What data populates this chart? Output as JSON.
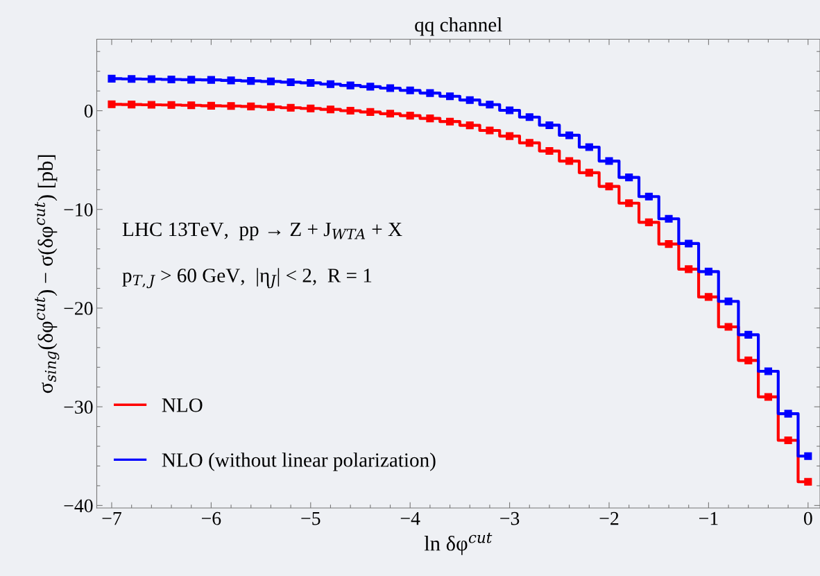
{
  "chart_data": {
    "type": "step",
    "title": "qq channel",
    "xlabel": "ln δφ$^{cut}$",
    "ylabel": "σ$_{sing}$(δφ$^{cut}$) − σ(δφ$^{cut}$) [pb]",
    "annotations": [
      "LHC 13TeV,  pp → Z + J$_{WTA}$ + X",
      "p$_{T,J}$ > 60 GeV,  |η$_{J}$| < 2,  R = 1"
    ],
    "x": [
      -7.0,
      -6.8,
      -6.6,
      -6.4,
      -6.2,
      -6.0,
      -5.8,
      -5.6,
      -5.4,
      -5.2,
      -5.0,
      -4.8,
      -4.6,
      -4.4,
      -4.2,
      -4.0,
      -3.8,
      -3.6,
      -3.4,
      -3.2,
      -3.0,
      -2.8,
      -2.6,
      -2.4,
      -2.2,
      -2.0,
      -1.8,
      -1.6,
      -1.4,
      -1.2,
      -1.0,
      -0.8,
      -0.6,
      -0.4,
      -0.2,
      0.0
    ],
    "series": [
      {
        "name": "NLO",
        "color": "#ff0000",
        "values": [
          0.65,
          0.63,
          0.6,
          0.58,
          0.55,
          0.5,
          0.48,
          0.43,
          0.38,
          0.3,
          0.23,
          0.13,
          0.0,
          -0.13,
          -0.3,
          -0.5,
          -0.78,
          -1.1,
          -1.48,
          -2.0,
          -2.57,
          -3.26,
          -4.08,
          -5.1,
          -6.28,
          -7.67,
          -9.37,
          -11.31,
          -13.51,
          -16.06,
          -18.87,
          -21.9,
          -25.3,
          -29.0,
          -33.4,
          -37.6
        ]
      },
      {
        "name": "NLO (without linear polarization)",
        "color": "#0000ff",
        "values": [
          3.25,
          3.22,
          3.2,
          3.17,
          3.14,
          3.12,
          3.07,
          3.02,
          2.97,
          2.89,
          2.82,
          2.69,
          2.56,
          2.44,
          2.29,
          2.06,
          1.79,
          1.46,
          1.08,
          0.62,
          0.04,
          -0.65,
          -1.47,
          -2.49,
          -3.69,
          -5.1,
          -6.76,
          -8.7,
          -10.95,
          -13.46,
          -16.3,
          -19.32,
          -22.7,
          -26.4,
          -30.7,
          -35.0
        ]
      }
    ],
    "marker": "square",
    "line_style": "solid",
    "legend": "bottom left",
    "grid": false,
    "xlim": [
      -7.15,
      0.12
    ],
    "ylim": [
      -40.26,
      7.25
    ],
    "xticks": [
      -7,
      {
        "value": -6.8,
        "label": null
      },
      {
        "value": -6.6,
        "label": null
      },
      {
        "value": -6.4,
        "label": null
      },
      {
        "value": -6.2,
        "label": null
      },
      -6,
      {
        "value": -5.8,
        "label": null
      },
      {
        "value": -5.6,
        "label": null
      },
      {
        "value": -5.4,
        "label": null
      },
      {
        "value": -5.2,
        "label": null
      },
      -5,
      {
        "value": -4.8,
        "label": null
      },
      {
        "value": -4.6,
        "label": null
      },
      {
        "value": -4.4,
        "label": null
      },
      {
        "value": -4.2,
        "label": null
      },
      -4,
      {
        "value": -3.8,
        "label": null
      },
      {
        "value": -3.6,
        "label": null
      },
      {
        "value": -3.4,
        "label": null
      },
      {
        "value": -3.2,
        "label": null
      },
      -3,
      {
        "value": -2.8,
        "label": null
      },
      {
        "value": -2.6,
        "label": null
      },
      {
        "value": -2.4,
        "label": null
      },
      {
        "value": -2.2,
        "label": null
      },
      -2,
      {
        "value": -1.8,
        "label": null
      },
      {
        "value": -1.6,
        "label": null
      },
      {
        "value": -1.4,
        "label": null
      },
      {
        "value": -1.2,
        "label": null
      },
      -1,
      {
        "value": -0.8,
        "label": null
      },
      {
        "value": -0.6,
        "label": null
      },
      {
        "value": -0.4,
        "label": null
      },
      {
        "value": -0.2,
        "label": null
      },
      0
    ],
    "yticks": [
      -40,
      {
        "value": -38,
        "label": null
      },
      {
        "value": -36,
        "label": null
      },
      {
        "value": -34,
        "label": null
      },
      {
        "value": -32,
        "label": null
      },
      -30,
      {
        "value": -28,
        "label": null
      },
      {
        "value": -26,
        "label": null
      },
      {
        "value": -24,
        "label": null
      },
      {
        "value": -22,
        "label": null
      },
      -20,
      {
        "value": -18,
        "label": null
      },
      {
        "value": -16,
        "label": null
      },
      {
        "value": -14,
        "label": null
      },
      {
        "value": -12,
        "label": null
      },
      -10,
      {
        "value": -8,
        "label": null
      },
      {
        "value": -6,
        "label": null
      },
      {
        "value": -4,
        "label": null
      },
      {
        "value": -2,
        "label": null
      },
      0,
      {
        "value": 2,
        "label": null
      },
      {
        "value": 4,
        "label": null
      },
      {
        "value": 6,
        "label": null
      }
    ]
  }
}
